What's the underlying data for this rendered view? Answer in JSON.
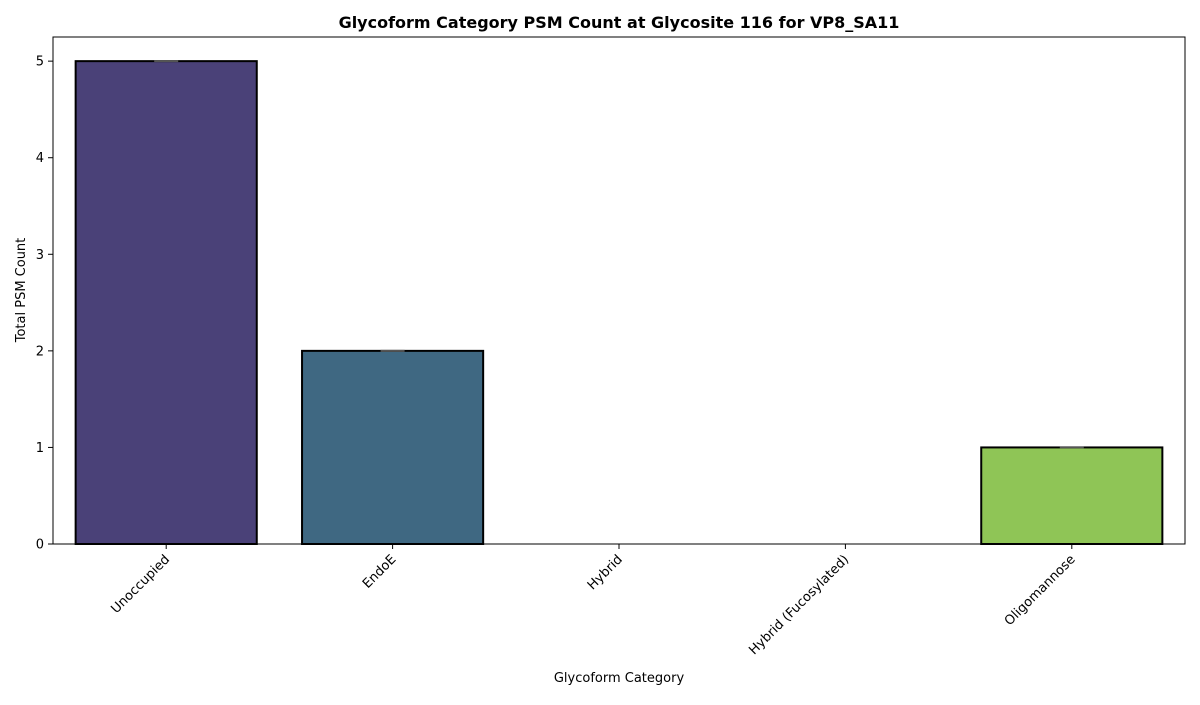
{
  "chart_data": {
    "type": "bar",
    "title": "Glycoform Category PSM Count at Glycosite 116 for VP8_SA11",
    "xlabel": "Glycoform Category",
    "ylabel": "Total PSM Count",
    "categories": [
      "Unoccupied",
      "EndoE",
      "Hybrid",
      "Hybrid (Fucosylated)",
      "Oligomannose"
    ],
    "values": [
      5,
      2,
      0,
      0,
      1
    ],
    "colors": [
      "#4a4178",
      "#3f6882",
      "#2f8f8f",
      "#3db37a",
      "#8fc556"
    ],
    "ylim": [
      0,
      5.25
    ],
    "yticks": [
      0,
      1,
      2,
      3,
      4,
      5
    ],
    "grid": false,
    "legend": "none"
  }
}
